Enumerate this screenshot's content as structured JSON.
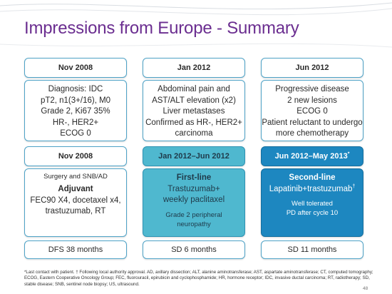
{
  "slide": {
    "title": "Impressions from Europe - Summary",
    "page_number": "48"
  },
  "col1": {
    "header_top": "Nov 2008",
    "diagnosis_lines": [
      "Diagnosis: IDC",
      "pT2, n1(3+/16), M0",
      "Grade 2, Ki67 35%",
      "HR-, HER2+",
      "ECOG 0"
    ],
    "header_mid": "Nov 2008",
    "surgery": "Surgery and SNB/AD",
    "adjuvant_title": "Adjuvant",
    "adjuvant_lines": [
      "FEC90 X4, docetaxel x4,",
      "trastuzumab, RT"
    ],
    "outcome": "DFS 38 months"
  },
  "col2": {
    "header_top": "Jan 2012",
    "event_lines": [
      "Abdominal pain and",
      "AST/ALT elevation (x2)",
      "Liver metastases",
      "Confirmed as HR-, HER2+",
      "carcinoma"
    ],
    "header_mid": "Jan 2012–Jun 2012",
    "line_title": "First-line",
    "regimen_lines": [
      "Trastuzumab+",
      "weekly paclitaxel"
    ],
    "note_lines": [
      "Grade 2 peripheral",
      "neuropathy"
    ],
    "outcome": "SD 6 months"
  },
  "col3": {
    "header_top": "Jun 2012",
    "event_lines": [
      "Progressive disease",
      "2 new lesions",
      "ECOG 0",
      "Patient reluctant to undergo",
      "more chemotherapy"
    ],
    "header_mid": "Jun 2012–May 2013",
    "header_mid_mark": "*",
    "line_title": "Second-line",
    "regimen": "Lapatinib+trastuzumab",
    "regimen_mark": "†",
    "note_lines": [
      "Well tolerated",
      "PD after cycle 10"
    ],
    "outcome": "SD 11 months"
  },
  "footnote": "*Last contact with patient. † Following local authority approval. AD, axillary dissection; ALT, alanine aminotransferase; AST, aspartate aminotransferase; CT, computed tomography; ECOG, Eastern Cooperative Oncology Group; FEC, fluorouracil, epirubicin and cyclophosphamide; HR, hormone receptor; IDC, invasive ductal carcinoma; RT, radiotherapy;  SD, stable disease; SNB, sentinel node biopsy; US, ultrasound.",
  "colors": {
    "title": "#6b2e90",
    "border": "#4fa3c7",
    "teal_fill": "#4fb8cf",
    "blue_fill": "#1d87c0"
  }
}
